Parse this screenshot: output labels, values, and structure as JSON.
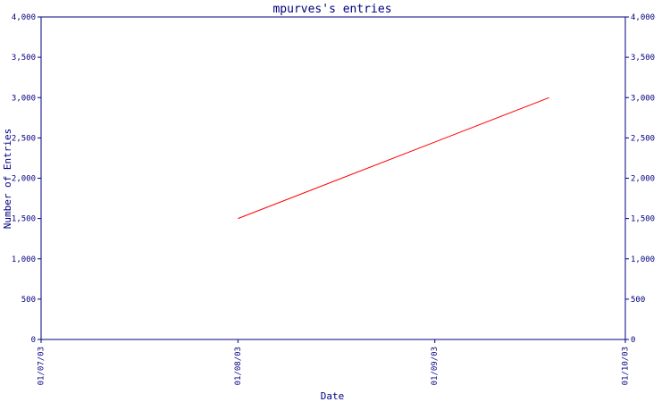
{
  "chart_data": {
    "type": "line",
    "title": "mpurves's entries",
    "xlabel": "Date",
    "ylabel": "Number of Entries",
    "x_ticks": [
      "01/07/03",
      "01/08/03",
      "01/09/03",
      "01/10/03"
    ],
    "xlim": [
      "2003-07-01",
      "2003-10-01"
    ],
    "ylim": [
      0,
      4000
    ],
    "y_ticks": [
      0,
      500,
      1000,
      1500,
      2000,
      2500,
      3000,
      3500,
      4000
    ],
    "y_tick_labels": [
      "0",
      "500",
      "1,000",
      "1,500",
      "2,000",
      "2,500",
      "3,000",
      "3,500",
      "4,000"
    ],
    "grid": false,
    "series": [
      {
        "color": "#ff0000",
        "points": [
          {
            "x": "2003-08-01",
            "y": 1500
          },
          {
            "x": "2003-09-19",
            "y": 3000
          }
        ]
      }
    ]
  },
  "colors": {
    "axis": "#000080",
    "text": "#000080",
    "series": "#ff0000",
    "background": "#ffffff"
  }
}
